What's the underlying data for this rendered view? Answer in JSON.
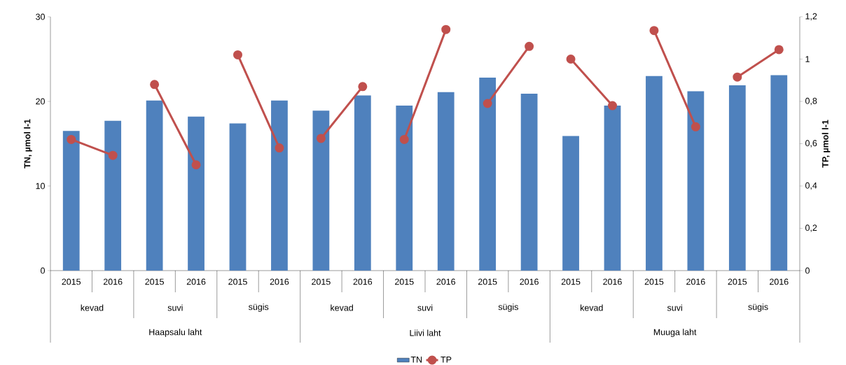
{
  "chart_data": {
    "type": "bar",
    "categories": [
      "2015",
      "2016",
      "2015",
      "2016",
      "2015",
      "2016",
      "2015",
      "2016",
      "2015",
      "2016",
      "2015",
      "2016",
      "2015",
      "2016",
      "2015",
      "2016",
      "2015",
      "2016"
    ],
    "series": [
      {
        "name": "TN",
        "color": "#4f81bd",
        "values": [
          16.5,
          17.7,
          20.1,
          18.2,
          17.4,
          20.1,
          18.9,
          20.7,
          19.5,
          21.1,
          22.8,
          20.9,
          15.9,
          19.5,
          23.0,
          21.2,
          21.9,
          23.1
        ]
      },
      {
        "name": "TP",
        "type": "line",
        "axis": "y2",
        "color": "#c0504d",
        "marker": "circle",
        "values": [
          0.62,
          0.545,
          0.88,
          0.5,
          1.02,
          0.58,
          0.625,
          0.87,
          0.62,
          1.14,
          0.79,
          1.06,
          1.0,
          0.78,
          1.135,
          0.68,
          0.915,
          1.045
        ]
      }
    ],
    "ylabel": "TN, µmol l-1",
    "y2label": "TP, µmol l-1",
    "ylim": [
      0,
      30
    ],
    "yticks": [
      0,
      10,
      20,
      30
    ],
    "y2lim": [
      0,
      1.2
    ],
    "y2ticks": [
      0,
      {
        "value": 0.2,
        "label": "0,2"
      },
      {
        "value": 0.4,
        "label": "0,4"
      },
      {
        "value": 0.6,
        "label": "0,6"
      },
      {
        "value": 0.8,
        "label": "0,8"
      },
      1,
      {
        "value": 1.2,
        "label": "1,2"
      }
    ],
    "annotations": [
      "kevad",
      "suvi",
      "sügis",
      "kevad",
      "suvi",
      "sügis",
      "kevad",
      "suvi",
      "sügis",
      "Haapsalu laht",
      "Liivi laht",
      "Muuga laht"
    ],
    "legend": "bottom"
  }
}
